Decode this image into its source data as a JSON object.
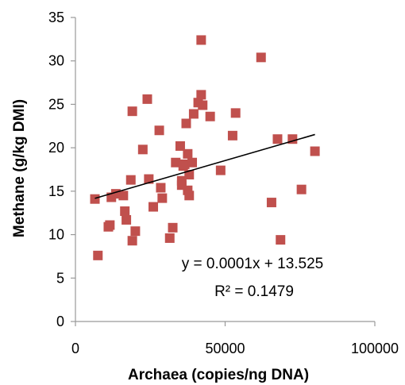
{
  "chart_data": {
    "type": "scatter",
    "title": "",
    "xlabel": "Archaea (copies/ng DNA)",
    "ylabel": "Methane (g/kg DMI)",
    "xlim": [
      0,
      100000
    ],
    "ylim": [
      0,
      35
    ],
    "x_ticks": [
      0,
      50000,
      100000
    ],
    "y_ticks": [
      0,
      5,
      10,
      15,
      20,
      25,
      30,
      35
    ],
    "x_tick_labels": [
      "0",
      "50000",
      "100000"
    ],
    "y_tick_labels": [
      "0",
      "5",
      "10",
      "15",
      "20",
      "25",
      "30",
      "35"
    ],
    "grid": false,
    "legend": "none",
    "marker_color": "#c0504d",
    "trendline_color": "#000000",
    "series": [
      {
        "points": [
          [
            6500,
            14.1
          ],
          [
            7500,
            7.6
          ],
          [
            11000,
            10.9
          ],
          [
            11500,
            11.1
          ],
          [
            12000,
            14.3
          ],
          [
            13500,
            14.7
          ],
          [
            16000,
            14.5
          ],
          [
            16500,
            12.7
          ],
          [
            17000,
            11.7
          ],
          [
            18500,
            16.3
          ],
          [
            19000,
            24.2
          ],
          [
            19000,
            9.3
          ],
          [
            20000,
            10.4
          ],
          [
            22500,
            19.8
          ],
          [
            24000,
            25.6
          ],
          [
            24500,
            16.4
          ],
          [
            26000,
            13.2
          ],
          [
            28000,
            22.0
          ],
          [
            28500,
            15.4
          ],
          [
            29000,
            14.2
          ],
          [
            31500,
            9.6
          ],
          [
            32500,
            10.8
          ],
          [
            33500,
            18.3
          ],
          [
            35000,
            20.2
          ],
          [
            35500,
            16.2
          ],
          [
            35500,
            15.7
          ],
          [
            36000,
            17.9
          ],
          [
            36500,
            18.1
          ],
          [
            37000,
            22.8
          ],
          [
            37500,
            19.3
          ],
          [
            37500,
            15.1
          ],
          [
            38000,
            14.5
          ],
          [
            38000,
            16.9
          ],
          [
            39000,
            18.3
          ],
          [
            39500,
            23.9
          ],
          [
            41000,
            25.2
          ],
          [
            42000,
            32.4
          ],
          [
            42000,
            26.1
          ],
          [
            42500,
            24.9
          ],
          [
            45000,
            23.6
          ],
          [
            48500,
            17.4
          ],
          [
            52500,
            21.4
          ],
          [
            53500,
            24.0
          ],
          [
            62000,
            30.4
          ],
          [
            65500,
            13.7
          ],
          [
            67500,
            21.0
          ],
          [
            68500,
            9.4
          ],
          [
            72500,
            21.0
          ],
          [
            75500,
            15.2
          ],
          [
            80000,
            19.6
          ]
        ]
      }
    ],
    "trendline": {
      "slope": 0.0001,
      "intercept": 13.525,
      "x_range": [
        6500,
        80000
      ]
    },
    "annotations": {
      "equation": "y = 0.0001x + 13.525",
      "r_squared": "R² = 0.1479"
    }
  }
}
